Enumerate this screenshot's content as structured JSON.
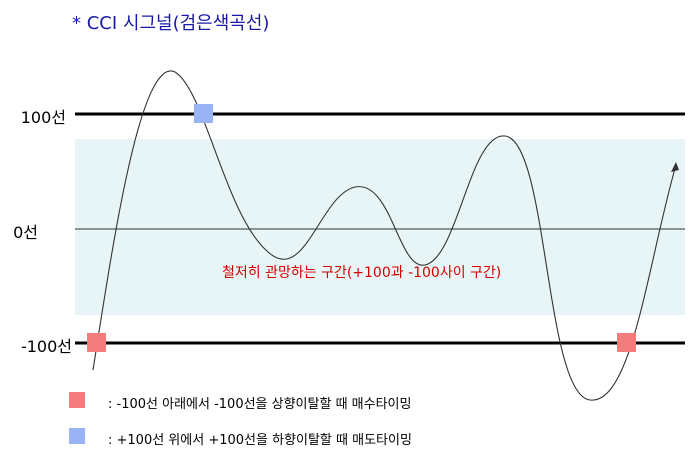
{
  "title": "* CCI 시그널(검은색곡선)",
  "levels": {
    "upper": "100선",
    "middle": "0선",
    "lower": "-100선"
  },
  "zone_label": "철저히 관망하는 구간(+100과 -100사이 구간)",
  "legend": [
    {
      "swatch_color": "#f47c7c",
      "text": ": -100선 아래에서 -100선을 상향이탈할 때 매수타이밍"
    },
    {
      "swatch_color": "#99b3f5",
      "text": ": +100선 위에서 +100선을 하향이탈할 때 매도타이밍"
    }
  ],
  "colors": {
    "title": "#1a1aa8",
    "zone_fill": "#e8f5f6",
    "zone_label": "#d40000",
    "buy_marker": "#f47c7c",
    "sell_marker": "#99b3f5"
  }
}
